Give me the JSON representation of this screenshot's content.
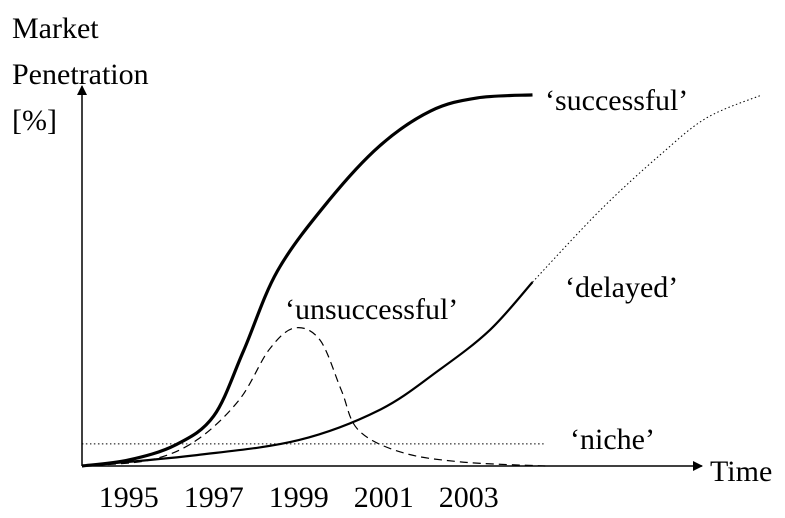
{
  "chart_data": {
    "type": "line",
    "y_label_lines": [
      "Market",
      "Penetration",
      "[%]"
    ],
    "x_label": "Time",
    "xlim": [
      1993.9,
      2009.9
    ],
    "ylim": [
      0,
      100
    ],
    "xticks": [
      1995,
      1997,
      1999,
      2001,
      2003
    ],
    "grid": false,
    "series": [
      {
        "name": "‘successful’",
        "color": "#000000",
        "line_style": "solid",
        "line_width": 3.2,
        "x": [
          1993.9,
          1995.0,
          1996.1,
          1997.0,
          1997.7,
          1998.5,
          1999.7,
          2000.9,
          2002.1,
          2003.2,
          2004.5
        ],
        "values": [
          0,
          1.6,
          5.6,
          13.3,
          30.6,
          51.9,
          70.5,
          85.1,
          94.4,
          97.9,
          98.7
        ]
      },
      {
        "name": "‘delayed’",
        "color": "#000000",
        "line_style": "solid",
        "line_width": 2.2,
        "x": [
          1993.9,
          1996.6,
          1999.0,
          2000.9,
          2002.3,
          2003.5,
          2004.5
        ],
        "values": [
          0,
          2.9,
          6.9,
          14.9,
          25.5,
          36.2,
          48.9
        ]
      },
      {
        "color": "#000000",
        "line_style": "dotted",
        "line_width": 1,
        "x": [
          2004.5,
          2006.1,
          2007.5,
          2008.6,
          2009.9
        ],
        "values": [
          48.9,
          68.1,
          82.7,
          92.6,
          98.7
        ]
      },
      {
        "name": "‘unsuccessful’",
        "color": "#000000",
        "line_style": "dashed",
        "line_width": 1.2,
        "x": [
          1993.9,
          1995.5,
          1996.6,
          1997.6,
          1998.3,
          1998.9,
          1999.5,
          2000.0,
          2000.4,
          2001.4,
          2002.8,
          2004.8
        ],
        "values": [
          0,
          1.6,
          6.9,
          17.6,
          30.9,
          36.7,
          33.5,
          20.2,
          9.6,
          3.7,
          1.1,
          0
        ]
      },
      {
        "name": "‘niche’",
        "color": "#000000",
        "line_style": "dotted",
        "line_width": 1,
        "x": [
          1993.9,
          2004.8
        ],
        "values": [
          5.9,
          5.9
        ]
      }
    ]
  }
}
